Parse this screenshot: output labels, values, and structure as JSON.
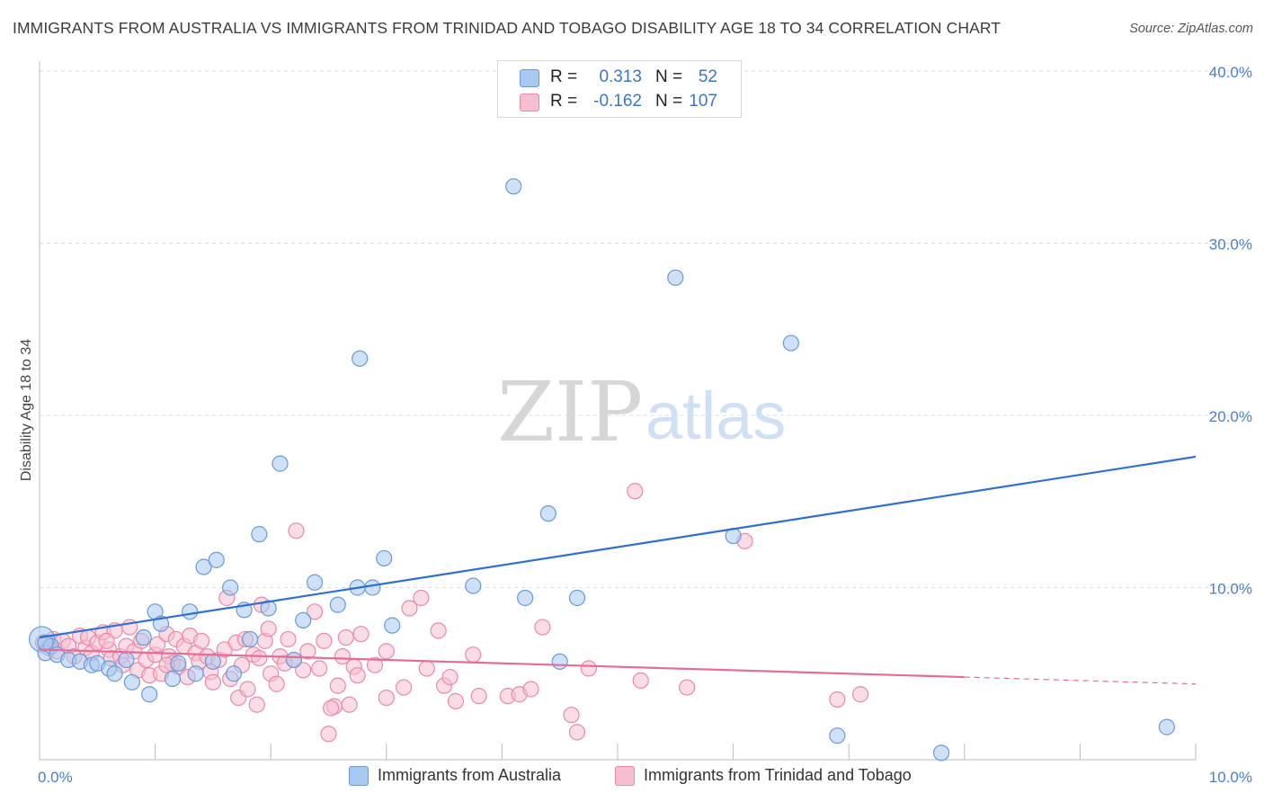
{
  "title": "IMMIGRANTS FROM AUSTRALIA VS IMMIGRANTS FROM TRINIDAD AND TOBAGO DISABILITY AGE 18 TO 34 CORRELATION CHART",
  "source": "Source: ZipAtlas.com",
  "watermark": {
    "zip": "ZIP",
    "atlas": "atlas"
  },
  "legend_top": [
    {
      "r_label": "R =",
      "r_value": "0.313",
      "n_label": "N =",
      "n_value": "52"
    },
    {
      "r_label": "R =",
      "r_value": "-0.162",
      "n_label": "N =",
      "n_value": "107"
    }
  ],
  "legend_bottom": [
    {
      "label": "Immigrants from Australia"
    },
    {
      "label": "Immigrants from Trinidad and Tobago"
    }
  ],
  "colors": {
    "australia_fill": "#a8c8ef",
    "australia_stroke": "#6a9ad8",
    "australia_line": "#2f6fcf",
    "trinidad_fill": "#f6bfd0",
    "trinidad_stroke": "#e98aaa",
    "trinidad_line": "#e46c96",
    "tick_text": "#4a7fc8"
  },
  "chart_data": {
    "type": "scatter",
    "title": "IMMIGRANTS FROM AUSTRALIA VS IMMIGRANTS FROM TRINIDAD AND TOBAGO DISABILITY AGE 18 TO 34 CORRELATION CHART",
    "xlabel": "",
    "ylabel": "Disability Age 18 to 34",
    "xlim": [
      0,
      10
    ],
    "ylim": [
      0,
      40
    ],
    "x_tick_labels": [
      "0.0%",
      "10.0%"
    ],
    "y_ticks": [
      10,
      20,
      30,
      40
    ],
    "y_tick_labels": [
      "10.0%",
      "20.0%",
      "30.0%",
      "40.0%"
    ],
    "grid": "horizontal dashed",
    "series": [
      {
        "name": "Immigrants from Australia",
        "r": 0.313,
        "n": 52,
        "trend": {
          "x": [
            0,
            10
          ],
          "y": [
            7.1,
            17.6
          ]
        },
        "points": [
          [
            0.02,
            7.0
          ],
          [
            0.05,
            6.2
          ],
          [
            0.1,
            6.6
          ],
          [
            0.15,
            6.1
          ],
          [
            0.25,
            5.8
          ],
          [
            0.35,
            5.7
          ],
          [
            0.45,
            5.5
          ],
          [
            0.5,
            5.6
          ],
          [
            0.6,
            5.3
          ],
          [
            0.65,
            5.0
          ],
          [
            0.75,
            5.8
          ],
          [
            0.8,
            4.5
          ],
          [
            0.9,
            7.1
          ],
          [
            0.95,
            3.8
          ],
          [
            1.0,
            8.6
          ],
          [
            1.05,
            7.9
          ],
          [
            1.15,
            4.7
          ],
          [
            1.2,
            5.6
          ],
          [
            1.3,
            8.6
          ],
          [
            1.35,
            5.0
          ],
          [
            1.42,
            11.2
          ],
          [
            1.5,
            5.7
          ],
          [
            1.53,
            11.6
          ],
          [
            1.65,
            10.0
          ],
          [
            1.68,
            5.0
          ],
          [
            1.77,
            8.7
          ],
          [
            1.82,
            7.0
          ],
          [
            1.9,
            13.1
          ],
          [
            1.98,
            8.8
          ],
          [
            2.08,
            17.2
          ],
          [
            2.2,
            5.8
          ],
          [
            2.28,
            8.1
          ],
          [
            2.38,
            10.3
          ],
          [
            2.58,
            9.0
          ],
          [
            2.75,
            10.0
          ],
          [
            2.77,
            23.3
          ],
          [
            2.88,
            10.0
          ],
          [
            2.98,
            11.7
          ],
          [
            3.05,
            7.8
          ],
          [
            3.75,
            10.1
          ],
          [
            4.1,
            33.3
          ],
          [
            4.2,
            9.4
          ],
          [
            4.4,
            14.3
          ],
          [
            4.5,
            5.7
          ],
          [
            4.65,
            9.4
          ],
          [
            5.5,
            28.0
          ],
          [
            6.0,
            13.0
          ],
          [
            6.5,
            24.2
          ],
          [
            6.9,
            1.4
          ],
          [
            7.8,
            0.4
          ],
          [
            9.75,
            1.9
          ],
          [
            0.05,
            6.8
          ]
        ]
      },
      {
        "name": "Immigrants from Trinidad and Tobago",
        "r": -0.162,
        "n": 107,
        "trend": {
          "x": [
            0,
            8
          ],
          "y": [
            6.4,
            4.8
          ]
        },
        "trend_dashed": {
          "x": [
            8,
            10
          ],
          "y": [
            4.8,
            4.4
          ]
        },
        "points": [
          [
            0.03,
            6.8
          ],
          [
            0.08,
            6.5
          ],
          [
            0.12,
            7.0
          ],
          [
            0.15,
            6.3
          ],
          [
            0.2,
            6.9
          ],
          [
            0.25,
            6.6
          ],
          [
            0.3,
            6.0
          ],
          [
            0.35,
            7.2
          ],
          [
            0.4,
            6.5
          ],
          [
            0.42,
            7.1
          ],
          [
            0.45,
            6.2
          ],
          [
            0.5,
            6.8
          ],
          [
            0.55,
            7.4
          ],
          [
            0.6,
            6.4
          ],
          [
            0.62,
            5.9
          ],
          [
            0.65,
            7.5
          ],
          [
            0.7,
            6.0
          ],
          [
            0.72,
            5.5
          ],
          [
            0.75,
            6.6
          ],
          [
            0.78,
            7.7
          ],
          [
            0.82,
            6.3
          ],
          [
            0.85,
            5.2
          ],
          [
            0.88,
            6.9
          ],
          [
            0.92,
            5.8
          ],
          [
            0.95,
            4.9
          ],
          [
            1.0,
            6.1
          ],
          [
            1.02,
            6.7
          ],
          [
            1.05,
            5.0
          ],
          [
            1.1,
            7.3
          ],
          [
            1.12,
            6.0
          ],
          [
            1.15,
            5.6
          ],
          [
            1.18,
            7.0
          ],
          [
            1.2,
            5.4
          ],
          [
            1.25,
            6.6
          ],
          [
            1.28,
            4.8
          ],
          [
            1.3,
            7.2
          ],
          [
            1.35,
            6.2
          ],
          [
            1.38,
            5.7
          ],
          [
            1.4,
            6.9
          ],
          [
            1.45,
            6.0
          ],
          [
            1.48,
            5.1
          ],
          [
            1.5,
            4.5
          ],
          [
            1.55,
            5.8
          ],
          [
            1.6,
            6.4
          ],
          [
            1.62,
            9.4
          ],
          [
            1.65,
            4.7
          ],
          [
            1.7,
            6.8
          ],
          [
            1.72,
            3.6
          ],
          [
            1.75,
            5.5
          ],
          [
            1.78,
            7.0
          ],
          [
            1.8,
            4.1
          ],
          [
            1.85,
            6.1
          ],
          [
            1.88,
            3.2
          ],
          [
            1.9,
            5.9
          ],
          [
            1.92,
            9.0
          ],
          [
            1.95,
            6.9
          ],
          [
            1.98,
            7.6
          ],
          [
            2.0,
            5.0
          ],
          [
            2.05,
            4.4
          ],
          [
            2.08,
            6.0
          ],
          [
            2.12,
            5.6
          ],
          [
            2.15,
            7.0
          ],
          [
            2.2,
            5.8
          ],
          [
            2.22,
            13.3
          ],
          [
            2.28,
            5.2
          ],
          [
            2.32,
            6.3
          ],
          [
            2.38,
            8.6
          ],
          [
            2.42,
            5.3
          ],
          [
            2.46,
            6.9
          ],
          [
            2.5,
            1.5
          ],
          [
            2.55,
            3.1
          ],
          [
            2.58,
            4.3
          ],
          [
            2.62,
            6.0
          ],
          [
            2.65,
            7.1
          ],
          [
            2.68,
            3.2
          ],
          [
            2.72,
            5.4
          ],
          [
            2.75,
            4.9
          ],
          [
            2.78,
            7.3
          ],
          [
            2.9,
            5.5
          ],
          [
            3.0,
            3.6
          ],
          [
            3.15,
            4.2
          ],
          [
            3.2,
            8.8
          ],
          [
            3.3,
            9.4
          ],
          [
            3.35,
            5.3
          ],
          [
            3.45,
            7.5
          ],
          [
            3.5,
            4.3
          ],
          [
            3.55,
            4.8
          ],
          [
            3.6,
            3.4
          ],
          [
            3.75,
            6.1
          ],
          [
            3.8,
            3.7
          ],
          [
            4.05,
            3.7
          ],
          [
            4.15,
            3.8
          ],
          [
            4.25,
            4.1
          ],
          [
            4.35,
            7.7
          ],
          [
            4.6,
            2.6
          ],
          [
            4.65,
            1.6
          ],
          [
            4.75,
            5.3
          ],
          [
            5.15,
            15.6
          ],
          [
            5.2,
            4.6
          ],
          [
            5.6,
            4.2
          ],
          [
            6.1,
            12.7
          ],
          [
            6.9,
            3.5
          ],
          [
            7.1,
            3.8
          ],
          [
            3.0,
            6.3
          ],
          [
            1.1,
            5.5
          ],
          [
            0.58,
            6.9
          ],
          [
            2.52,
            3.0
          ]
        ]
      }
    ]
  }
}
